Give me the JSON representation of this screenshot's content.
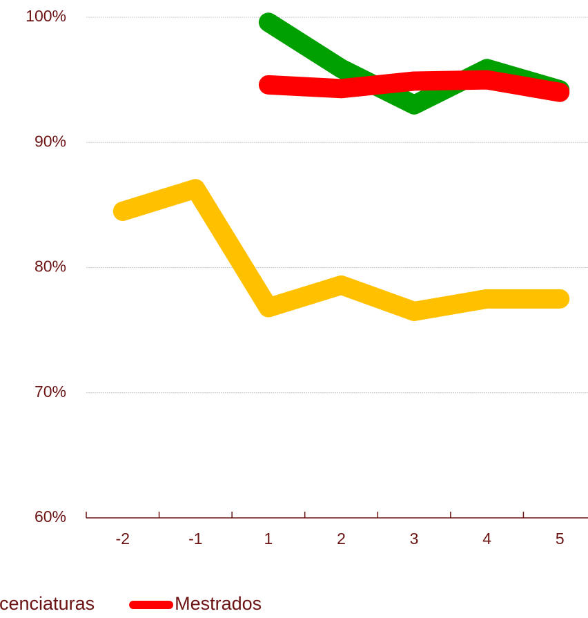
{
  "chart_data": {
    "type": "line",
    "categories": [
      "-2",
      "-1",
      "1",
      "2",
      "3",
      "4",
      "5"
    ],
    "series": [
      {
        "name": "Licenciaturas",
        "color": "#ffc000",
        "values": [
          84.5,
          86.3,
          76.8,
          78.6,
          76.5,
          77.5,
          77.5
        ]
      },
      {
        "color": "#00a000",
        "values": [
          null,
          null,
          99.6,
          95.9,
          93.0,
          95.9,
          94.2
        ]
      },
      {
        "name": "Mestrados",
        "color": "#ff0000",
        "values": [
          null,
          null,
          94.6,
          94.3,
          94.9,
          95.0,
          94.0
        ]
      }
    ],
    "ylim": [
      60,
      100
    ],
    "yticks": [
      {
        "value": 60,
        "label": "60%"
      },
      {
        "value": 70,
        "label": "70%"
      },
      {
        "value": 80,
        "label": "80%"
      },
      {
        "value": 90,
        "label": "90%"
      },
      {
        "value": 100,
        "label": "100%"
      }
    ],
    "grid": true
  }
}
